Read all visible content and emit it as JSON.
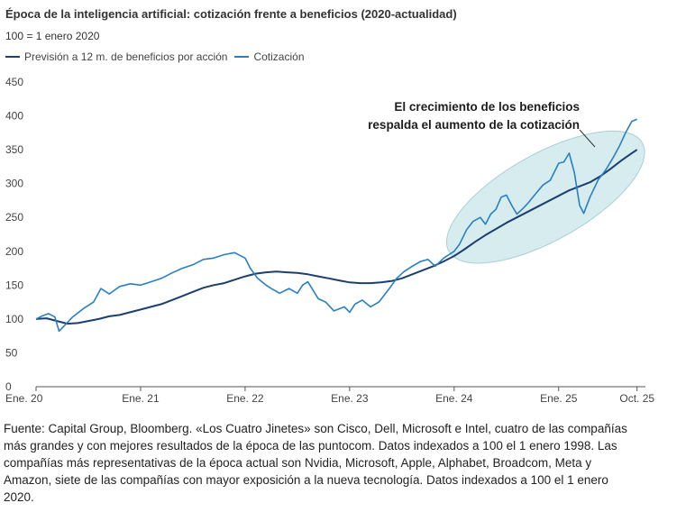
{
  "chart_data": {
    "type": "line",
    "title": "Época de la inteligencia artificial: cotización frente a beneficios (2020-actualidad)",
    "subtitle": "100 = 1 enero 2020",
    "ylim": [
      0,
      450
    ],
    "xlim": [
      2020.0,
      2025.83
    ],
    "y_ticks": [
      0,
      50,
      100,
      150,
      200,
      250,
      300,
      350,
      400,
      450
    ],
    "x_ticks": [
      {
        "x": 2020.0,
        "label": "Ene. 20"
      },
      {
        "x": 2021.0,
        "label": "Ene. 21"
      },
      {
        "x": 2022.0,
        "label": "Ene. 22"
      },
      {
        "x": 2023.0,
        "label": "Ene. 23"
      },
      {
        "x": 2024.0,
        "label": "Ene. 24"
      },
      {
        "x": 2025.0,
        "label": "Ene. 25"
      },
      {
        "x": 2025.75,
        "label": "Oct. 25"
      }
    ],
    "grid": false,
    "legend_position": "top-left",
    "series": [
      {
        "name": "Previsión a 12 m. de beneficios por acción",
        "color": "#1b3f6e",
        "points": [
          [
            2020.0,
            100
          ],
          [
            2020.1,
            101
          ],
          [
            2020.2,
            97
          ],
          [
            2020.3,
            93
          ],
          [
            2020.4,
            94
          ],
          [
            2020.5,
            97
          ],
          [
            2020.6,
            100
          ],
          [
            2020.7,
            104
          ],
          [
            2020.8,
            106
          ],
          [
            2020.9,
            110
          ],
          [
            2021.0,
            114
          ],
          [
            2021.1,
            118
          ],
          [
            2021.2,
            122
          ],
          [
            2021.3,
            128
          ],
          [
            2021.4,
            134
          ],
          [
            2021.5,
            140
          ],
          [
            2021.6,
            146
          ],
          [
            2021.7,
            150
          ],
          [
            2021.8,
            153
          ],
          [
            2021.9,
            158
          ],
          [
            2022.0,
            163
          ],
          [
            2022.1,
            167
          ],
          [
            2022.2,
            169
          ],
          [
            2022.3,
            170
          ],
          [
            2022.4,
            169
          ],
          [
            2022.5,
            168
          ],
          [
            2022.6,
            166
          ],
          [
            2022.7,
            163
          ],
          [
            2022.8,
            160
          ],
          [
            2022.9,
            157
          ],
          [
            2023.0,
            154
          ],
          [
            2023.1,
            153
          ],
          [
            2023.2,
            153
          ],
          [
            2023.3,
            154
          ],
          [
            2023.4,
            156
          ],
          [
            2023.5,
            160
          ],
          [
            2023.6,
            166
          ],
          [
            2023.7,
            172
          ],
          [
            2023.8,
            178
          ],
          [
            2023.9,
            185
          ],
          [
            2024.0,
            193
          ],
          [
            2024.1,
            203
          ],
          [
            2024.2,
            214
          ],
          [
            2024.3,
            224
          ],
          [
            2024.4,
            233
          ],
          [
            2024.5,
            242
          ],
          [
            2024.6,
            250
          ],
          [
            2024.7,
            258
          ],
          [
            2024.8,
            266
          ],
          [
            2024.9,
            274
          ],
          [
            2025.0,
            282
          ],
          [
            2025.1,
            290
          ],
          [
            2025.2,
            296
          ],
          [
            2025.3,
            302
          ],
          [
            2025.4,
            311
          ],
          [
            2025.5,
            322
          ],
          [
            2025.6,
            334
          ],
          [
            2025.7,
            345
          ],
          [
            2025.75,
            350
          ]
        ]
      },
      {
        "name": "Cotización",
        "color": "#2a7fc2",
        "points": [
          [
            2020.0,
            100
          ],
          [
            2020.05,
            104
          ],
          [
            2020.12,
            108
          ],
          [
            2020.18,
            103
          ],
          [
            2020.22,
            82
          ],
          [
            2020.27,
            90
          ],
          [
            2020.35,
            103
          ],
          [
            2020.45,
            115
          ],
          [
            2020.55,
            125
          ],
          [
            2020.62,
            145
          ],
          [
            2020.7,
            137
          ],
          [
            2020.8,
            148
          ],
          [
            2020.9,
            152
          ],
          [
            2021.0,
            150
          ],
          [
            2021.1,
            155
          ],
          [
            2021.2,
            160
          ],
          [
            2021.3,
            168
          ],
          [
            2021.4,
            175
          ],
          [
            2021.5,
            180
          ],
          [
            2021.6,
            188
          ],
          [
            2021.7,
            190
          ],
          [
            2021.8,
            195
          ],
          [
            2021.9,
            198
          ],
          [
            2022.0,
            190
          ],
          [
            2022.05,
            175
          ],
          [
            2022.12,
            160
          ],
          [
            2022.2,
            150
          ],
          [
            2022.25,
            145
          ],
          [
            2022.33,
            138
          ],
          [
            2022.42,
            145
          ],
          [
            2022.5,
            138
          ],
          [
            2022.55,
            150
          ],
          [
            2022.6,
            155
          ],
          [
            2022.7,
            130
          ],
          [
            2022.77,
            125
          ],
          [
            2022.85,
            112
          ],
          [
            2022.95,
            118
          ],
          [
            2023.0,
            110
          ],
          [
            2023.05,
            122
          ],
          [
            2023.12,
            128
          ],
          [
            2023.2,
            118
          ],
          [
            2023.28,
            125
          ],
          [
            2023.38,
            145
          ],
          [
            2023.45,
            160
          ],
          [
            2023.52,
            170
          ],
          [
            2023.6,
            178
          ],
          [
            2023.68,
            185
          ],
          [
            2023.75,
            188
          ],
          [
            2023.82,
            178
          ],
          [
            2023.9,
            190
          ],
          [
            2024.0,
            200
          ],
          [
            2024.05,
            210
          ],
          [
            2024.12,
            232
          ],
          [
            2024.18,
            244
          ],
          [
            2024.25,
            250
          ],
          [
            2024.3,
            240
          ],
          [
            2024.35,
            255
          ],
          [
            2024.4,
            262
          ],
          [
            2024.45,
            280
          ],
          [
            2024.5,
            283
          ],
          [
            2024.55,
            268
          ],
          [
            2024.6,
            255
          ],
          [
            2024.65,
            262
          ],
          [
            2024.7,
            270
          ],
          [
            2024.78,
            285
          ],
          [
            2024.85,
            298
          ],
          [
            2024.92,
            305
          ],
          [
            2025.0,
            330
          ],
          [
            2025.05,
            332
          ],
          [
            2025.1,
            345
          ],
          [
            2025.15,
            316
          ],
          [
            2025.2,
            268
          ],
          [
            2025.24,
            256
          ],
          [
            2025.3,
            280
          ],
          [
            2025.38,
            306
          ],
          [
            2025.45,
            320
          ],
          [
            2025.52,
            338
          ],
          [
            2025.58,
            355
          ],
          [
            2025.64,
            375
          ],
          [
            2025.7,
            392
          ],
          [
            2025.75,
            395
          ]
        ]
      }
    ],
    "annotation": {
      "lines": [
        "El crecimiento de los beneficios",
        "respalda el aumento de la cotización"
      ],
      "ellipse_x_range": [
        2023.95,
        2025.8
      ],
      "ellipse_y_range": [
        200,
        360
      ]
    }
  },
  "footnote": "Fuente: Capital Group, Bloomberg. «Los Cuatro Jinetes» son Cisco, Dell, Microsoft e Intel, cuatro de las compañías más grandes y con mejores resultados de la época de las puntocom. Datos indexados a 100 el 1 enero 1998. Las compañías más representativas de la época actual son Nvidia, Microsoft, Apple, Alphabet, Broadcom, Meta y Amazon, siete de las compañías con mayor exposición a la nueva tecnología. Datos indexados a 100 el 1 enero 2020."
}
